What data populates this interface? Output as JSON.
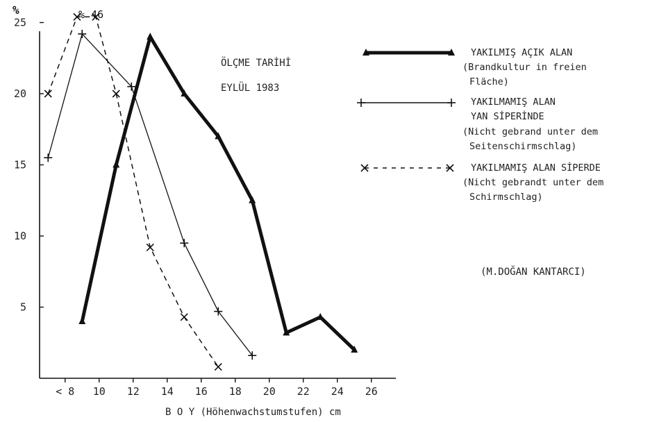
{
  "chart_data": {
    "type": "line",
    "y_unit_label": "%",
    "xlabel": "B O Y  (Höhenwachstumstufen)  cm",
    "x_tick_labels": [
      "< 8",
      "10",
      "12",
      "14",
      "16",
      "18",
      "20",
      "22",
      "24",
      "26"
    ],
    "y_tick_labels": [
      "5",
      "10",
      "15",
      "20",
      "25"
    ],
    "xlim": [
      6.5,
      27.5
    ],
    "ylim": [
      0,
      25
    ],
    "measurement_note": [
      "ÖLÇME TARİHİ",
      "EYLÜL 1983"
    ],
    "peak_label": "% 46",
    "author": "(M.DOĞAN KANTARCI)",
    "series": [
      {
        "name": "YAKILMIŞ AÇIK ALAN",
        "description": [
          "(Brandkultur in freien",
          "Fläche)"
        ],
        "style": "thick",
        "marker": "triangle",
        "color": "#111111",
        "points": [
          [
            9,
            4
          ],
          [
            11,
            15
          ],
          [
            13,
            24
          ],
          [
            15,
            20
          ],
          [
            17,
            17
          ],
          [
            19,
            12.5
          ],
          [
            21,
            3.2
          ],
          [
            23,
            4.3
          ],
          [
            25,
            2
          ]
        ]
      },
      {
        "name": "YAKILMAMIŞ ALAN",
        "name2": "YAN SİPERİNDE",
        "description": [
          "(Nicht gebrand unter dem",
          "Seitenschirmschlag)"
        ],
        "style": "solid",
        "marker": "plus",
        "color": "#111111",
        "points": [
          [
            7,
            15.5
          ],
          [
            9,
            24.2
          ],
          [
            11.9,
            20.5
          ],
          [
            15,
            9.5
          ],
          [
            17,
            4.7
          ],
          [
            19,
            1.6
          ]
        ]
      },
      {
        "name": "YAKILMAMIŞ ALAN SİPERDE",
        "description": [
          "(Nicht gebrandt unter dem",
          "Schirmschlag)"
        ],
        "style": "dashed",
        "marker": "x",
        "color": "#111111",
        "points": [
          [
            7,
            20
          ],
          [
            8.7,
            25.4
          ],
          [
            9.8,
            25.4
          ],
          [
            11,
            20
          ],
          [
            13,
            9.2
          ],
          [
            15,
            4.3
          ],
          [
            17,
            0.8
          ]
        ]
      }
    ]
  }
}
